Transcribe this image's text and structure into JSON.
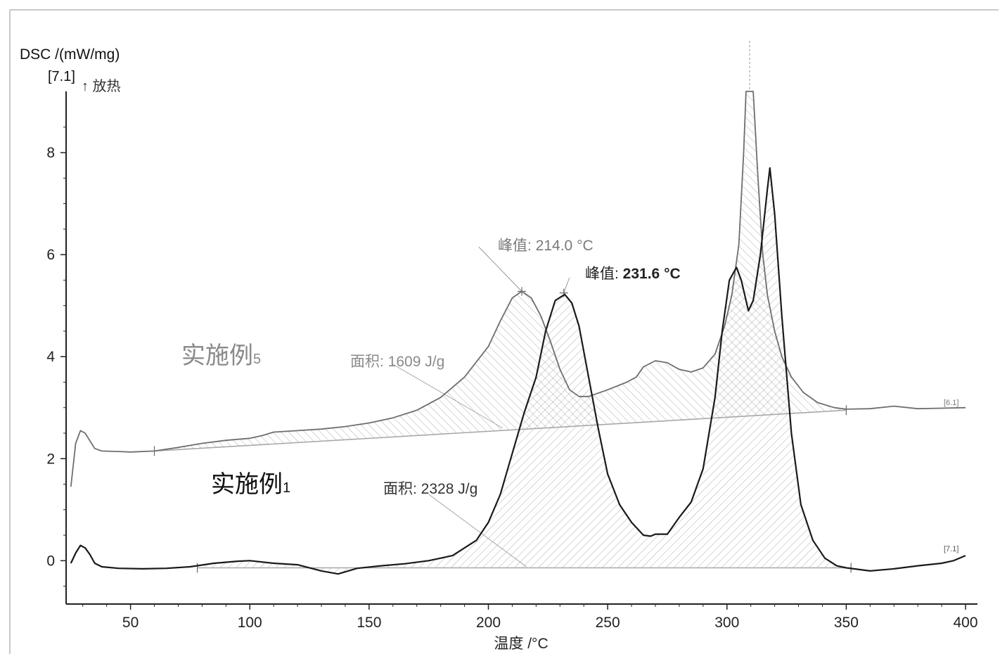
{
  "chart_data": {
    "type": "line",
    "ylabel": "DSC /(mW/mg)",
    "ylabel_note": "[7.1]",
    "exo_label": "↑ 放热",
    "xlabel": "温度 /°C",
    "xlim": [
      23,
      405
    ],
    "ylim": [
      -0.85,
      9.2
    ],
    "xticks": [
      "50",
      "100",
      "150",
      "200",
      "250",
      "300",
      "350",
      "400"
    ],
    "yticks": [
      "0",
      "2",
      "4",
      "6",
      "8"
    ],
    "colors": {
      "series5": "#6e6e6e",
      "series1": "#1a1a1a",
      "hatch": "#9a9a9a",
      "baseline": "#a8a8a8"
    },
    "series": [
      {
        "name": "实施例5",
        "label_main": "实施例",
        "label_sub": "5",
        "end_tag": "[6.1]",
        "values": [
          [
            25,
            1.45
          ],
          [
            27,
            2.3
          ],
          [
            29,
            2.55
          ],
          [
            31,
            2.5
          ],
          [
            33,
            2.35
          ],
          [
            35,
            2.2
          ],
          [
            38,
            2.15
          ],
          [
            45,
            2.14
          ],
          [
            50,
            2.13
          ],
          [
            60,
            2.15
          ],
          [
            70,
            2.22
          ],
          [
            80,
            2.3
          ],
          [
            90,
            2.36
          ],
          [
            100,
            2.4
          ],
          [
            105,
            2.45
          ],
          [
            110,
            2.52
          ],
          [
            120,
            2.55
          ],
          [
            130,
            2.58
          ],
          [
            140,
            2.63
          ],
          [
            150,
            2.7
          ],
          [
            160,
            2.8
          ],
          [
            170,
            2.95
          ],
          [
            180,
            3.2
          ],
          [
            190,
            3.6
          ],
          [
            200,
            4.2
          ],
          [
            205,
            4.7
          ],
          [
            210,
            5.15
          ],
          [
            214,
            5.28
          ],
          [
            218,
            5.15
          ],
          [
            222,
            4.8
          ],
          [
            226,
            4.3
          ],
          [
            230,
            3.75
          ],
          [
            234,
            3.35
          ],
          [
            238,
            3.22
          ],
          [
            242,
            3.22
          ],
          [
            250,
            3.35
          ],
          [
            258,
            3.5
          ],
          [
            262,
            3.6
          ],
          [
            265,
            3.8
          ],
          [
            270,
            3.92
          ],
          [
            275,
            3.88
          ],
          [
            280,
            3.75
          ],
          [
            285,
            3.7
          ],
          [
            290,
            3.78
          ],
          [
            295,
            4.05
          ],
          [
            299,
            4.6
          ],
          [
            302,
            5.2
          ],
          [
            305,
            6.2
          ],
          [
            307,
            8.0
          ],
          [
            308,
            9.2
          ],
          [
            311,
            9.2
          ],
          [
            313,
            7.5
          ],
          [
            315,
            6.0
          ],
          [
            317,
            5.2
          ],
          [
            320,
            4.5
          ],
          [
            323,
            4.0
          ],
          [
            327,
            3.6
          ],
          [
            332,
            3.3
          ],
          [
            338,
            3.1
          ],
          [
            345,
            3.0
          ],
          [
            350,
            2.97
          ],
          [
            360,
            2.98
          ],
          [
            370,
            3.03
          ],
          [
            380,
            2.98
          ],
          [
            390,
            2.99
          ],
          [
            400,
            3.0
          ]
        ]
      },
      {
        "name": "实施例1",
        "label_main": "实施例",
        "label_sub": "1",
        "end_tag": "[7.1]",
        "values": [
          [
            25,
            -0.05
          ],
          [
            27,
            0.15
          ],
          [
            29,
            0.3
          ],
          [
            31,
            0.25
          ],
          [
            33,
            0.12
          ],
          [
            35,
            -0.05
          ],
          [
            38,
            -0.12
          ],
          [
            45,
            -0.15
          ],
          [
            55,
            -0.16
          ],
          [
            65,
            -0.15
          ],
          [
            75,
            -0.12
          ],
          [
            85,
            -0.05
          ],
          [
            95,
            -0.01
          ],
          [
            100,
            0.0
          ],
          [
            110,
            -0.05
          ],
          [
            120,
            -0.08
          ],
          [
            130,
            -0.2
          ],
          [
            137,
            -0.26
          ],
          [
            145,
            -0.15
          ],
          [
            155,
            -0.1
          ],
          [
            165,
            -0.06
          ],
          [
            175,
            0.0
          ],
          [
            185,
            0.1
          ],
          [
            195,
            0.4
          ],
          [
            200,
            0.75
          ],
          [
            205,
            1.3
          ],
          [
            210,
            2.1
          ],
          [
            215,
            2.9
          ],
          [
            220,
            3.6
          ],
          [
            224,
            4.5
          ],
          [
            228,
            5.1
          ],
          [
            232,
            5.22
          ],
          [
            235,
            5.05
          ],
          [
            238,
            4.6
          ],
          [
            242,
            3.6
          ],
          [
            246,
            2.6
          ],
          [
            250,
            1.7
          ],
          [
            255,
            1.1
          ],
          [
            260,
            0.75
          ],
          [
            265,
            0.5
          ],
          [
            268,
            0.48
          ],
          [
            270,
            0.52
          ],
          [
            275,
            0.52
          ],
          [
            280,
            0.85
          ],
          [
            285,
            1.15
          ],
          [
            290,
            1.8
          ],
          [
            295,
            3.2
          ],
          [
            298,
            4.5
          ],
          [
            301,
            5.5
          ],
          [
            304,
            5.75
          ],
          [
            306,
            5.5
          ],
          [
            309,
            4.9
          ],
          [
            311,
            5.1
          ],
          [
            314,
            6.0
          ],
          [
            317,
            7.3
          ],
          [
            318,
            7.7
          ],
          [
            320,
            6.8
          ],
          [
            323,
            4.8
          ],
          [
            327,
            2.5
          ],
          [
            331,
            1.1
          ],
          [
            336,
            0.4
          ],
          [
            341,
            0.05
          ],
          [
            346,
            -0.1
          ],
          [
            350,
            -0.14
          ],
          [
            360,
            -0.2
          ],
          [
            370,
            -0.16
          ],
          [
            380,
            -0.1
          ],
          [
            390,
            -0.05
          ],
          [
            395,
            0.0
          ],
          [
            400,
            0.1
          ]
        ]
      }
    ],
    "baselines": [
      {
        "series": "实施例5",
        "x1": 60,
        "y1": 2.15,
        "x2": 350,
        "y2": 2.95
      },
      {
        "series": "实施例1",
        "x1": 78,
        "y1": -0.14,
        "x2": 352,
        "y2": -0.14
      }
    ],
    "annotations": [
      {
        "prefix": "峰值:",
        "text": " 214.0 °C",
        "peak_x": 214,
        "peak_y": 5.28,
        "label_x": 196,
        "label_y": 6.15,
        "series": "实施例5"
      },
      {
        "prefix": "峰值:",
        "text": " 231.6 °C",
        "peak_x": 231.6,
        "peak_y": 5.25,
        "label_x": 234,
        "label_y": 5.55,
        "series": "实施例1"
      },
      {
        "prefix": "面积:",
        "text": " 1609 J/g",
        "from_x": 160,
        "from_y": 3.85,
        "to_x": 206,
        "to_y": 2.6,
        "series": "实施例5"
      },
      {
        "prefix": "面积:",
        "text": " 2328 J/g",
        "from_x": 175,
        "from_y": 1.3,
        "to_x": 216,
        "to_y": -0.12,
        "series": "实施例1"
      }
    ]
  }
}
